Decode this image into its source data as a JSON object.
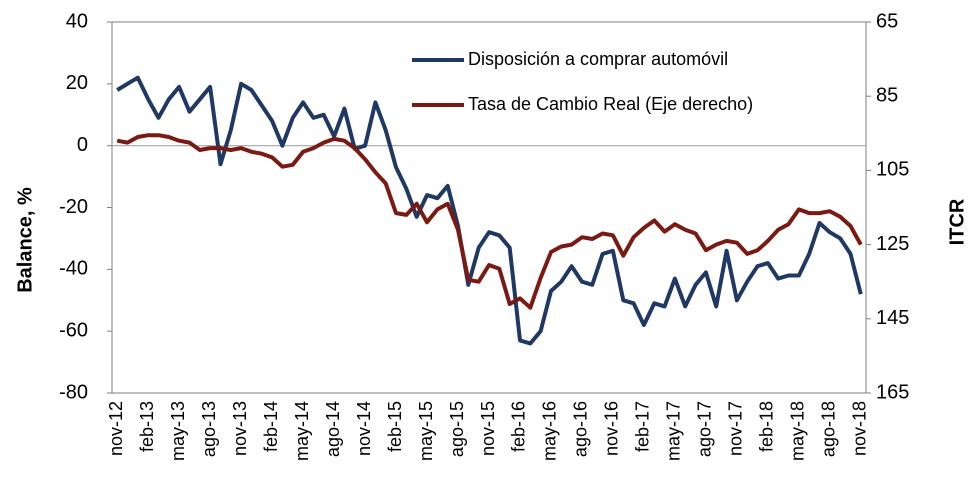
{
  "chart_data": {
    "type": "line",
    "y_label": "Balance, %",
    "y2_label": "ITCR",
    "categories": [
      "nov-12",
      null,
      null,
      "feb-13",
      null,
      null,
      "may-13",
      null,
      null,
      "ago-13",
      null,
      null,
      "nov-13",
      null,
      null,
      "feb-14",
      null,
      null,
      "may-14",
      null,
      null,
      "ago-14",
      null,
      null,
      "nov-14",
      null,
      null,
      "feb-15",
      null,
      null,
      "may-15",
      null,
      null,
      "ago-15",
      null,
      null,
      "nov-15",
      null,
      null,
      "feb-16",
      null,
      null,
      "may-16",
      null,
      null,
      "ago-16",
      null,
      null,
      "nov-16",
      null,
      null,
      "feb-17",
      null,
      null,
      "may-17",
      null,
      null,
      "ago-17",
      null,
      null,
      "nov-17",
      null,
      null,
      "feb-18",
      null,
      null,
      "may-18",
      null,
      null,
      "ago-18",
      null,
      null,
      "nov-18"
    ],
    "series": [
      {
        "name": "Disposición a comprar automóvil",
        "color": "#1f3864",
        "axis": "y",
        "values": [
          18,
          20,
          22,
          15,
          9,
          15,
          19,
          11,
          15,
          19,
          -6,
          5,
          20,
          18,
          13,
          8,
          0,
          9,
          14,
          9,
          10,
          3,
          12,
          -1,
          0,
          14,
          5,
          -7,
          -14,
          -23,
          -16,
          -17,
          -13,
          -26,
          -45,
          -33,
          -28,
          -29,
          -33,
          -63,
          -64,
          -60,
          -47,
          -44,
          -39,
          -44,
          -45,
          -35,
          -34,
          -50,
          -51,
          -58,
          -51,
          -52,
          -43,
          -52,
          -45,
          -41,
          -52,
          -34,
          -50,
          -44,
          -39,
          -38,
          -43,
          -42,
          -42,
          -35,
          -25,
          -28,
          -30,
          -35,
          -48
        ]
      },
      {
        "name": "Tasa de Cambio Real (Eje derecho)",
        "color": "#7b1a12",
        "axis": "y2",
        "values": [
          97,
          97.5,
          96,
          95.5,
          95.5,
          96,
          97,
          97.5,
          99.5,
          99,
          99,
          99.5,
          99,
          100,
          100.5,
          101.5,
          104,
          103.5,
          100,
          99,
          97.5,
          96.5,
          97,
          99,
          102,
          105.5,
          108.5,
          116.5,
          117,
          114,
          119,
          115.5,
          114,
          121,
          134.5,
          135,
          130.5,
          131.5,
          141,
          139.5,
          142,
          134,
          127,
          125.5,
          125,
          123,
          123.5,
          122,
          122.5,
          128,
          123,
          120.5,
          118.5,
          121.5,
          119.5,
          121,
          122,
          126.5,
          125,
          124,
          124.5,
          127.5,
          126.5,
          124,
          121,
          119.5,
          115.5,
          116.5,
          116.5,
          116,
          117.5,
          120,
          125
        ]
      }
    ],
    "ylim": [
      -80,
      40
    ],
    "yticks": [
      -80,
      -60,
      -40,
      -20,
      0,
      20,
      40
    ],
    "y2lim": [
      165,
      65
    ],
    "y2ticks": [
      65,
      85,
      105,
      125,
      145,
      165
    ],
    "hline": 0,
    "hline_color": "#a6a6a6"
  }
}
